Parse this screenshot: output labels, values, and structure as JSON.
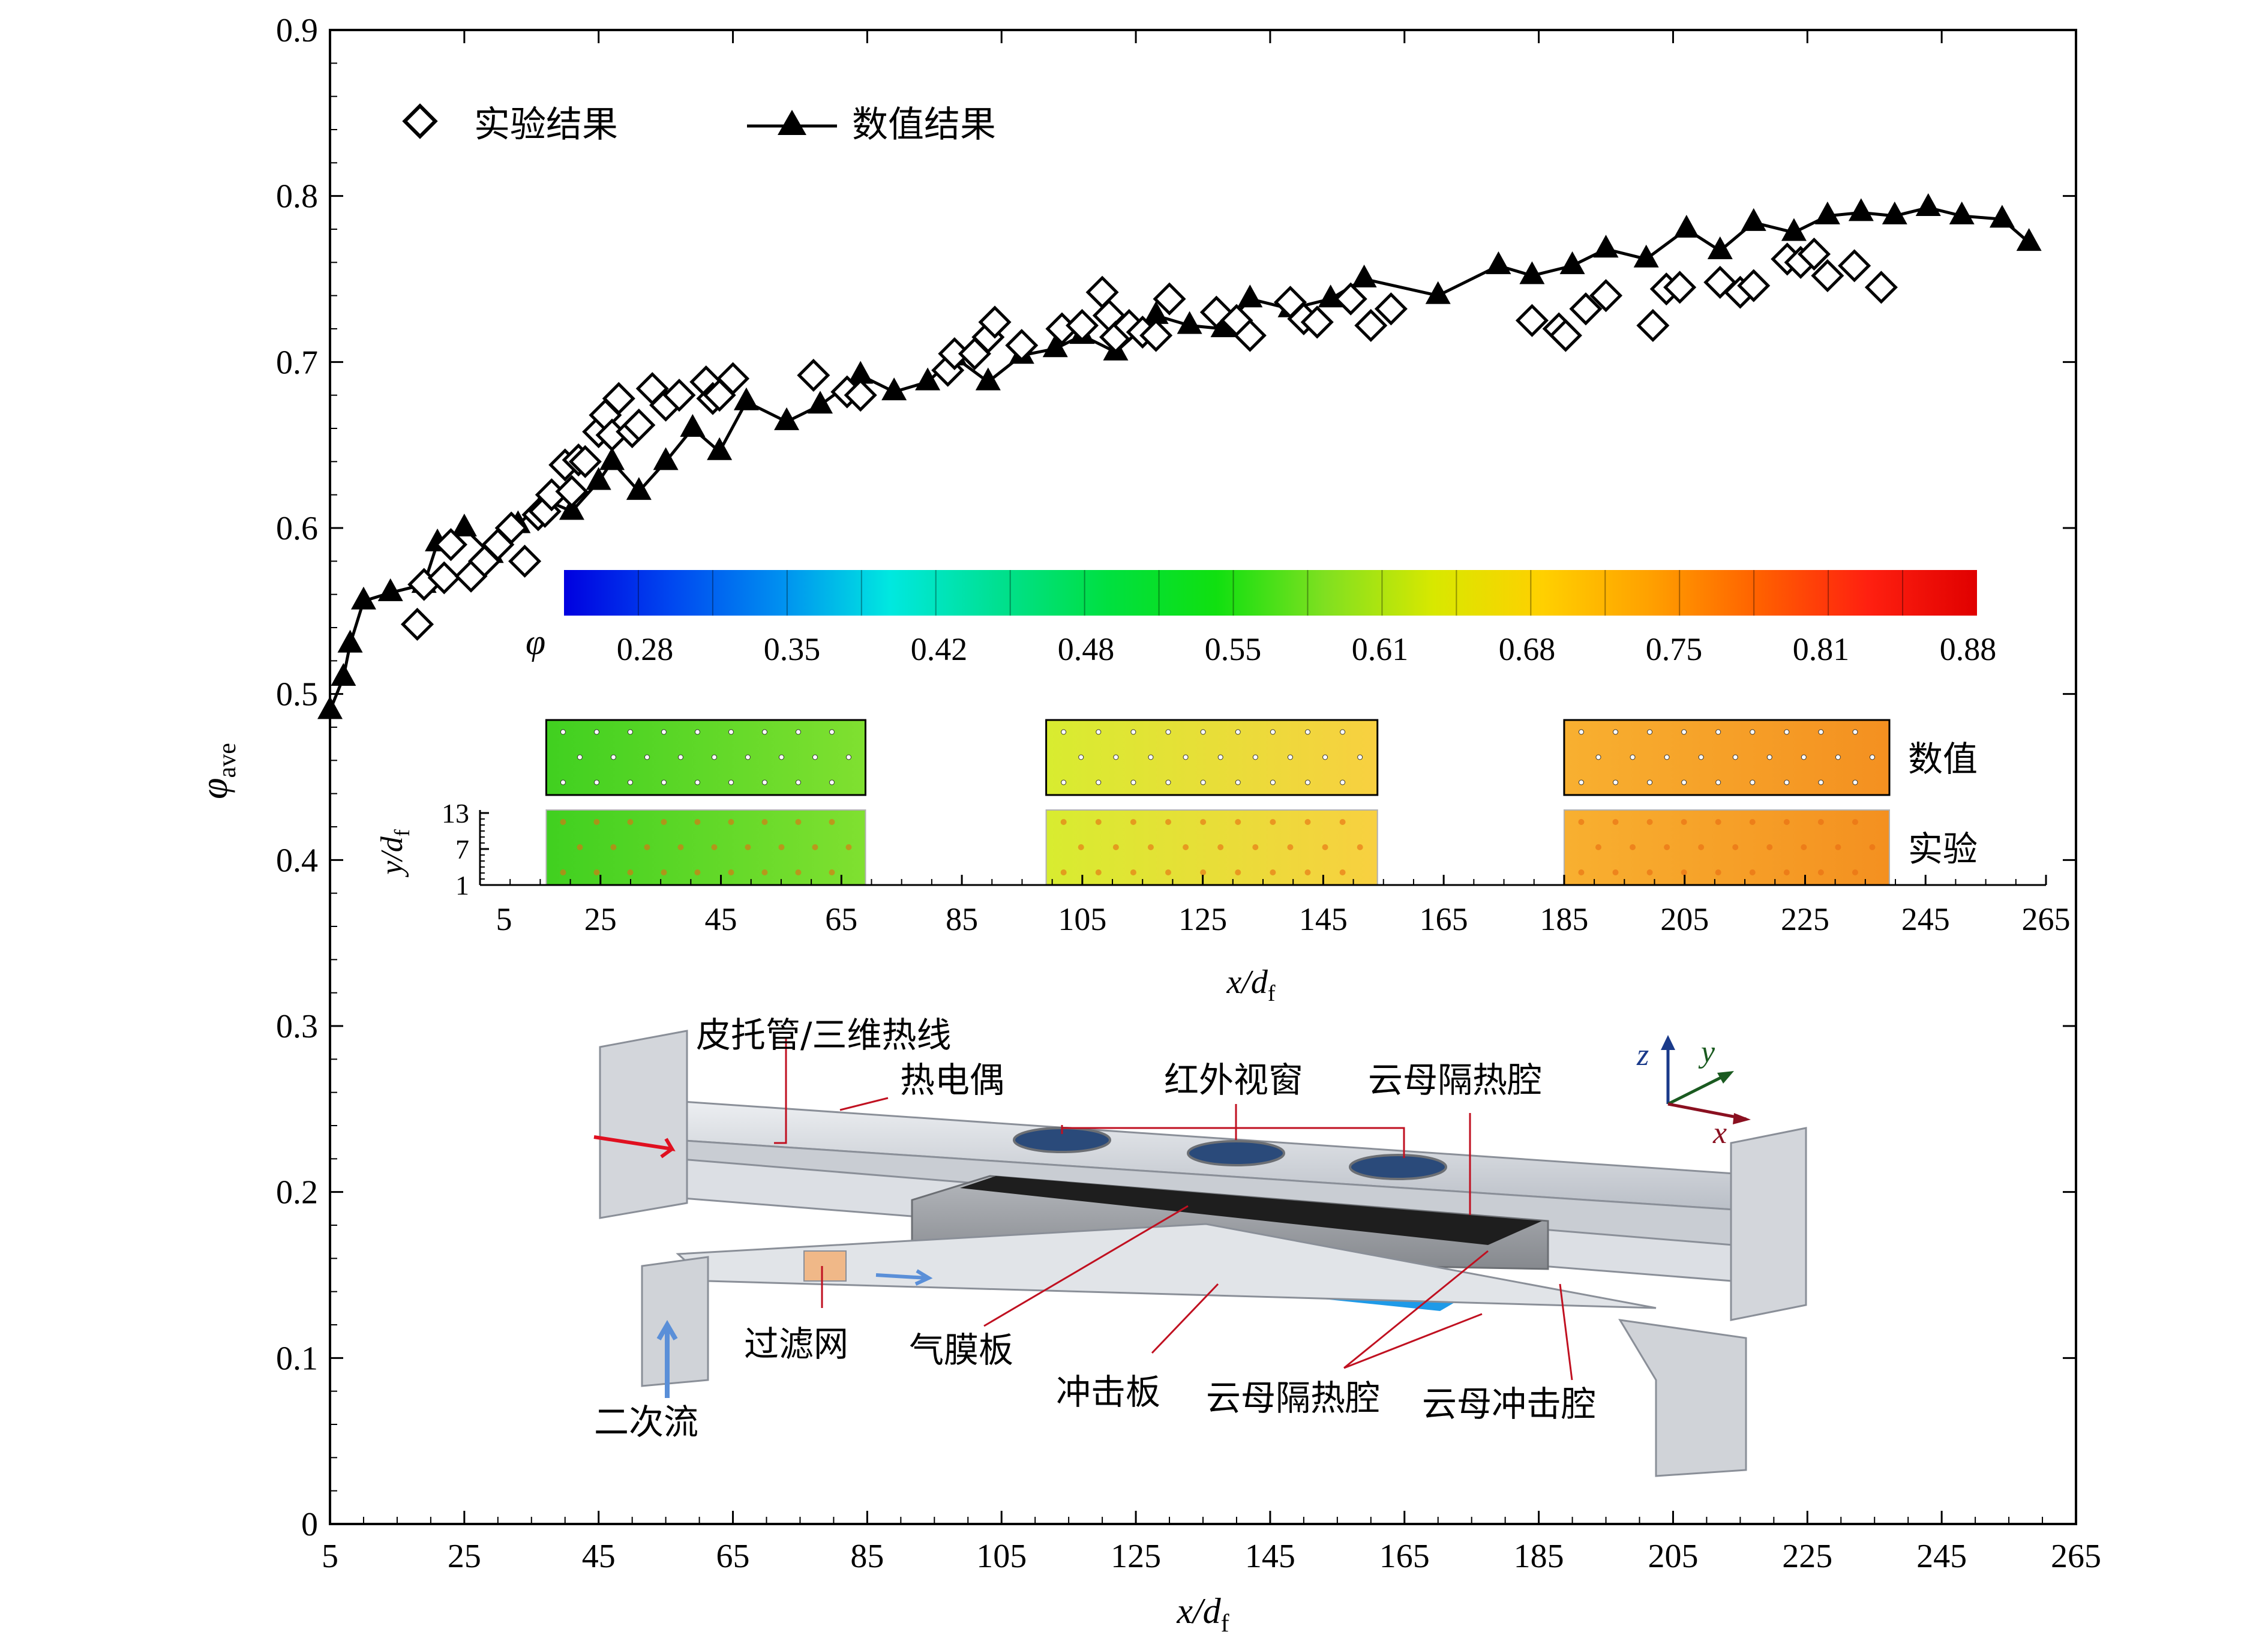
{
  "chart_data": [
    {
      "type": "line",
      "ylabel_symbol": "φ",
      "ylabel_sub": "ave",
      "xlabel_symbol": "x/d",
      "xlabel_sub": "f",
      "xlim": [
        5,
        265
      ],
      "ylim": [
        0,
        0.9
      ],
      "xticks": [
        "5",
        "25",
        "45",
        "65",
        "85",
        "105",
        "125",
        "145",
        "165",
        "185",
        "205",
        "225",
        "245",
        "265"
      ],
      "yticks": [
        "0",
        "0.1",
        "0.2",
        "0.3",
        "0.4",
        "0.5",
        "0.6",
        "0.7",
        "0.8",
        "0.9"
      ],
      "legend": {
        "position": "top-left",
        "experiment": "实验结果",
        "numerical": "数值结果"
      },
      "series": [
        {
          "name": "数值结果",
          "marker": "filled-triangle",
          "x": [
            5,
            7,
            8,
            10,
            14,
            19,
            21,
            25,
            29,
            33,
            37,
            41,
            45,
            47,
            51,
            55,
            59,
            63,
            67,
            73,
            78,
            84,
            89,
            94,
            98,
            103,
            108,
            113,
            117,
            122,
            128,
            133,
            138,
            142,
            148,
            154,
            159,
            170,
            179,
            184,
            190,
            195,
            201,
            207,
            212,
            217,
            223,
            228,
            233,
            238,
            243,
            248,
            254,
            258
          ],
          "y": [
            0.49,
            0.51,
            0.53,
            0.556,
            0.561,
            0.566,
            0.591,
            0.6,
            0.584,
            0.602,
            0.617,
            0.61,
            0.628,
            0.64,
            0.622,
            0.64,
            0.66,
            0.646,
            0.676,
            0.664,
            0.674,
            0.692,
            0.682,
            0.688,
            0.703,
            0.688,
            0.704,
            0.708,
            0.716,
            0.706,
            0.728,
            0.722,
            0.72,
            0.738,
            0.732,
            0.738,
            0.75,
            0.74,
            0.758,
            0.752,
            0.758,
            0.768,
            0.762,
            0.78,
            0.767,
            0.784,
            0.778,
            0.788,
            0.79,
            0.788,
            0.793,
            0.788,
            0.786,
            0.772
          ]
        },
        {
          "name": "实验结果",
          "marker": "hollow-diamond",
          "x": [
            18,
            19,
            22,
            23,
            26,
            28,
            30,
            32,
            34,
            36,
            37,
            38,
            40,
            41,
            42,
            43,
            45,
            46,
            47,
            48,
            50,
            51,
            53,
            55,
            57,
            61,
            62,
            63,
            65,
            77,
            82,
            84,
            97,
            98,
            101,
            103,
            104,
            108,
            114,
            117,
            120,
            121,
            122,
            124,
            126,
            128,
            130,
            137,
            140,
            142,
            148,
            150,
            152,
            157,
            160,
            163,
            184,
            188,
            189,
            192,
            195,
            202,
            204,
            206,
            212,
            215,
            217,
            222,
            224,
            226,
            228,
            232,
            236
          ],
          "y": [
            0.542,
            0.566,
            0.57,
            0.59,
            0.571,
            0.58,
            0.59,
            0.6,
            0.58,
            0.608,
            0.61,
            0.62,
            0.638,
            0.622,
            0.641,
            0.64,
            0.658,
            0.668,
            0.656,
            0.678,
            0.658,
            0.662,
            0.684,
            0.674,
            0.68,
            0.688,
            0.678,
            0.68,
            0.69,
            0.692,
            0.682,
            0.68,
            0.695,
            0.705,
            0.705,
            0.715,
            0.724,
            0.71,
            0.72,
            0.722,
            0.742,
            0.728,
            0.715,
            0.722,
            0.718,
            0.716,
            0.738,
            0.73,
            0.725,
            0.716,
            0.736,
            0.726,
            0.724,
            0.738,
            0.722,
            0.732,
            0.725,
            0.72,
            0.716,
            0.732,
            0.74,
            0.722,
            0.744,
            0.745,
            0.748,
            0.742,
            0.746,
            0.762,
            0.76,
            0.765,
            0.752,
            0.758,
            0.745
          ]
        }
      ]
    },
    {
      "type": "heatmap",
      "colorbar_symbol": "φ",
      "colorbar_ticks": [
        "0.28",
        "0.35",
        "0.42",
        "0.48",
        "0.55",
        "0.61",
        "0.68",
        "0.75",
        "0.81",
        "0.88"
      ],
      "colorbar_stops": [
        "#0000e0",
        "#0048f0",
        "#0090f0",
        "#00e8e0",
        "#00e090",
        "#00e040",
        "#10e010",
        "#80e020",
        "#d8e800",
        "#ffd000",
        "#ffa000",
        "#ff6000",
        "#ff2010",
        "#e00000"
      ],
      "xlabel_symbol": "x/d",
      "xlabel_sub": "f",
      "ylabel_symbol": "y/d",
      "ylabel_sub": "f",
      "xlim": [
        5,
        265
      ],
      "xticks": [
        "5",
        "25",
        "45",
        "65",
        "85",
        "105",
        "125",
        "145",
        "165",
        "185",
        "205",
        "225",
        "245",
        "265"
      ],
      "yticks": [
        "1",
        "7",
        "13"
      ],
      "row_labels": {
        "numerical": "数值",
        "experiment": "实验"
      },
      "panels": [
        {
          "x": [
            16,
            69
          ],
          "phi_start": 0.58,
          "phi_end": 0.6,
          "color_start": "#40d020",
          "color_end": "#80e030"
        },
        {
          "x": [
            99,
            154
          ],
          "phi_start": 0.68,
          "phi_end": 0.73,
          "color_start": "#d8ec30",
          "color_end": "#f8d040"
        },
        {
          "x": [
            185,
            239
          ],
          "phi_start": 0.77,
          "phi_end": 0.8,
          "color_start": "#f8b030",
          "color_end": "#f49020"
        }
      ]
    }
  ],
  "diagram": {
    "labels": {
      "pitot": "皮托管/三维热线",
      "thermocouple": "热电偶",
      "ir_window": "红外视窗",
      "mica_chamber_top": "云母隔热腔",
      "filter": "过滤网",
      "secondary_flow": "二次流",
      "film_plate": "气膜板",
      "impingement_plate": "冲击板",
      "mica_chamber_bottom": "云母隔热腔",
      "mica_impingement": "云母冲击腔"
    },
    "axes": {
      "x": "x",
      "y": "y",
      "z": "z"
    },
    "colors": {
      "duct": "#d8dbe0",
      "duct_edge": "#8a8f98",
      "chamber": "#9c9fa4",
      "black_plate": "#1e1e1e",
      "blue_plate": "#1e9ae8",
      "filter": "#f0b888",
      "window": "#2a4a7a",
      "red_arrow": "#e01020",
      "blue_arrow": "#5a8fd8",
      "x_axis": "#8a1020",
      "y_axis": "#1a5a20",
      "z_axis": "#1a3a8a"
    }
  }
}
